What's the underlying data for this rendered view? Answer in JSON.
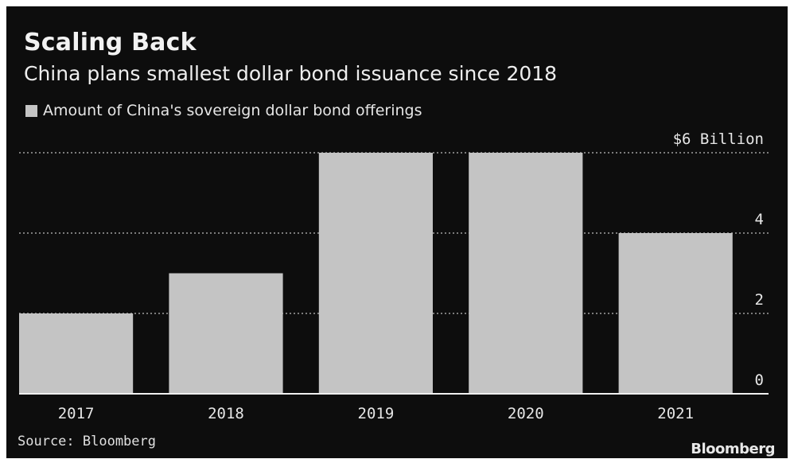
{
  "chart_data": {
    "type": "bar",
    "title": "Scaling Back",
    "subtitle": "China plans smallest dollar bond issuance since 2018",
    "legend": [
      "Amount of China's sovereign dollar bond offerings"
    ],
    "categories": [
      "2017",
      "2018",
      "2019",
      "2020",
      "2021"
    ],
    "series": [
      {
        "name": "Amount of China's sovereign dollar bond offerings",
        "values": [
          2,
          3,
          6,
          6,
          4
        ],
        "color": "#c4c4c4"
      }
    ],
    "yticks": [
      0,
      2,
      4,
      6
    ],
    "ytick_labels": [
      "0",
      "2",
      "4",
      "$6 Billion"
    ],
    "ylim": [
      0,
      6
    ],
    "xlabel": "",
    "ylabel": "",
    "grid": true,
    "legend_position": "top-left",
    "background": "#0d0d0d",
    "text_color": "#e6e6e6",
    "grid_color": "#a0a0a0"
  },
  "footer": {
    "source": "Source: Bloomberg",
    "brand": "Bloomberg"
  }
}
